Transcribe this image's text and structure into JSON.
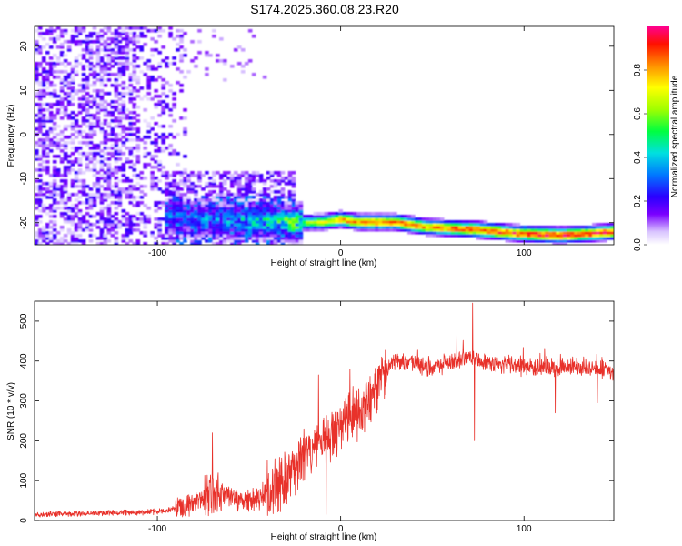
{
  "figure": {
    "title": "S174.2025.360.08.23.R20"
  },
  "colors": {
    "snr_line": "#e8312a",
    "background": "#ffffff",
    "axis": "#000000",
    "colormap": [
      "#c8a8ff",
      "#6a00ff",
      "#0000ff",
      "#00c8ff",
      "#00ff00",
      "#ffff00",
      "#ff8000",
      "#ff0000",
      "#ff0080"
    ]
  },
  "chart_data": [
    {
      "type": "heatmap",
      "title": "S174.2025.360.08.23.R20",
      "xlabel": "Height of straight line (km)",
      "ylabel": "Frequency (Hz)",
      "xlim": [
        -167,
        149
      ],
      "ylim": [
        -25,
        24.5
      ],
      "xticks": [
        -100,
        0,
        100
      ],
      "yticks": [
        -20,
        -10,
        0,
        10,
        20
      ],
      "grid": false,
      "colorbar": {
        "label": "Normalized spectral amplitude",
        "range": [
          0,
          1
        ],
        "ticks": [
          "0.0",
          "0.2",
          "0.4",
          "0.6",
          "0.8"
        ],
        "tick_values": [
          0,
          0.2,
          0.4,
          0.6,
          0.8
        ]
      },
      "signal_track": {
        "description_x": [
          -93,
          -60,
          -40,
          -25,
          -10,
          0,
          10,
          30,
          45,
          60,
          75,
          95,
          120,
          149
        ],
        "frequency_hz": [
          -18.5,
          -19.5,
          -19.5,
          -20,
          -19.8,
          -19.2,
          -19.8,
          -19.8,
          -20.8,
          -21.2,
          -21.5,
          -22.3,
          -22.8,
          -22.0
        ],
        "peak_amplitude": [
          0.3,
          0.35,
          0.45,
          0.55,
          0.7,
          0.85,
          0.9,
          0.9,
          0.85,
          0.9,
          0.95,
          0.95,
          1.0,
          0.95
        ]
      },
      "noise_region": {
        "x_range": [
          -167,
          -90
        ],
        "frequency_range": [
          -25,
          24.5
        ],
        "amplitude_range": [
          0.02,
          0.2
        ]
      }
    },
    {
      "type": "line",
      "title": "",
      "xlabel": "Height of straight line (km)",
      "ylabel": "SNR (10 * v/v)",
      "xlim": [
        -167,
        149
      ],
      "ylim": [
        0,
        550
      ],
      "xticks": [
        -100,
        0,
        100
      ],
      "yticks": [
        0,
        100,
        200,
        300,
        400,
        500
      ],
      "grid": false,
      "series": [
        {
          "color": "#e8312a",
          "trend_x": [
            -167,
            -120,
            -100,
            -90,
            -75,
            -65,
            -55,
            -45,
            -40,
            -30,
            -20,
            -10,
            0,
            10,
            20,
            25,
            30,
            40,
            50,
            60,
            70,
            75,
            80,
            90,
            100,
            110,
            120,
            130,
            140,
            149
          ],
          "trend_y": [
            15,
            20,
            22,
            30,
            55,
            70,
            50,
            55,
            70,
            110,
            160,
            200,
            240,
            270,
            340,
            380,
            400,
            390,
            385,
            400,
            410,
            400,
            395,
            390,
            385,
            385,
            385,
            385,
            380,
            375
          ],
          "spikes": [
            {
              "x": -70,
              "y": 220
            },
            {
              "x": -40,
              "y": 150
            },
            {
              "x": -20,
              "y": 230
            },
            {
              "x": -12,
              "y": 365
            },
            {
              "x": 5,
              "y": 380
            },
            {
              "x": -8,
              "y": 15
            },
            {
              "x": 72,
              "y": 545
            },
            {
              "x": 73,
              "y": 200
            },
            {
              "x": 63,
              "y": 470
            },
            {
              "x": 117,
              "y": 270
            },
            {
              "x": 140,
              "y": 295
            }
          ]
        }
      ]
    }
  ]
}
